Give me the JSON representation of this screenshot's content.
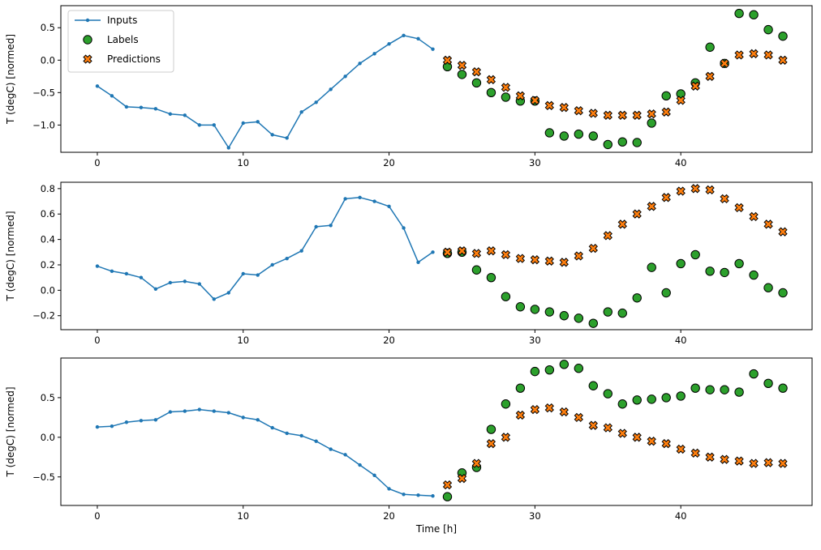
{
  "figure": {
    "background_color": "#ffffff",
    "xlabel": "Time [h]",
    "ylabel": "T (degC) [normed]",
    "legend": {
      "position": "upper-left",
      "entries": [
        {
          "label": "Inputs",
          "marker": "line-dot",
          "color": "#1f77b4"
        },
        {
          "label": "Labels",
          "marker": "circle",
          "color": "#2ca02c"
        },
        {
          "label": "Predictions",
          "marker": "x",
          "color": "#ff7f0e"
        }
      ]
    }
  },
  "chart_data": [
    {
      "type": "line",
      "title": "",
      "ylabel": "T (degC) [normed]",
      "xlim": [
        -2.5,
        49.0
      ],
      "xticks": [
        0,
        10,
        20,
        30,
        40
      ],
      "ylim": [
        -1.42,
        0.84
      ],
      "yticks": [
        0.5,
        0.0,
        -0.5,
        -1.0
      ],
      "grid": false,
      "series": [
        {
          "name": "Inputs",
          "marker": "line-dot",
          "color": "#1f77b4",
          "x_start": 0,
          "values": [
            -0.4,
            -0.55,
            -0.72,
            -0.73,
            -0.75,
            -0.83,
            -0.85,
            -1.0,
            -1.0,
            -1.35,
            -0.97,
            -0.95,
            -1.15,
            -1.2,
            -0.8,
            -0.65,
            -0.45,
            -0.25,
            -0.05,
            0.1,
            0.25,
            0.38,
            0.33,
            0.17
          ]
        },
        {
          "name": "Labels",
          "marker": "circle",
          "color": "#2ca02c",
          "x_start": 24,
          "values": [
            -0.1,
            -0.22,
            -0.35,
            -0.5,
            -0.57,
            -0.63,
            -0.63,
            -1.12,
            -1.17,
            -1.14,
            -1.17,
            -1.3,
            -1.26,
            -1.27,
            -0.97,
            -0.55,
            -0.52,
            -0.35,
            0.2,
            -0.05,
            0.72,
            0.7,
            0.47,
            0.37
          ]
        },
        {
          "name": "Predictions",
          "marker": "x",
          "color": "#ff7f0e",
          "x_start": 24,
          "values": [
            0.0,
            -0.08,
            -0.18,
            -0.3,
            -0.42,
            -0.55,
            -0.62,
            -0.7,
            -0.73,
            -0.78,
            -0.82,
            -0.85,
            -0.85,
            -0.85,
            -0.83,
            -0.8,
            -0.62,
            -0.4,
            -0.25,
            -0.05,
            0.08,
            0.1,
            0.08,
            0.0
          ]
        }
      ]
    },
    {
      "type": "line",
      "title": "",
      "ylabel": "T (degC) [normed]",
      "xlim": [
        -2.5,
        49.0
      ],
      "xticks": [
        0,
        10,
        20,
        30,
        40
      ],
      "ylim": [
        -0.31,
        0.85
      ],
      "yticks": [
        0.8,
        0.6,
        0.4,
        0.2,
        0.0,
        -0.2
      ],
      "grid": false,
      "series": [
        {
          "name": "Inputs",
          "marker": "line-dot",
          "color": "#1f77b4",
          "x_start": 0,
          "values": [
            0.19,
            0.15,
            0.13,
            0.1,
            0.01,
            0.06,
            0.07,
            0.05,
            -0.07,
            -0.02,
            0.13,
            0.12,
            0.2,
            0.25,
            0.31,
            0.5,
            0.51,
            0.72,
            0.73,
            0.7,
            0.66,
            0.49,
            0.22,
            0.3
          ]
        },
        {
          "name": "Labels",
          "marker": "circle",
          "color": "#2ca02c",
          "x_start": 24,
          "values": [
            0.29,
            0.3,
            0.16,
            0.1,
            -0.05,
            -0.13,
            -0.15,
            -0.17,
            -0.2,
            -0.22,
            -0.26,
            -0.17,
            -0.18,
            -0.06,
            0.18,
            -0.02,
            0.21,
            0.28,
            0.15,
            0.14,
            0.21,
            0.12,
            0.02,
            -0.02
          ]
        },
        {
          "name": "Predictions",
          "marker": "x",
          "color": "#ff7f0e",
          "x_start": 24,
          "values": [
            0.3,
            0.31,
            0.29,
            0.31,
            0.28,
            0.25,
            0.24,
            0.23,
            0.22,
            0.27,
            0.33,
            0.43,
            0.52,
            0.6,
            0.66,
            0.73,
            0.78,
            0.8,
            0.79,
            0.72,
            0.65,
            0.58,
            0.52,
            0.46
          ]
        }
      ]
    },
    {
      "type": "line",
      "title": "",
      "ylabel": "T (degC) [normed]",
      "xlabel": "Time [h]",
      "xlim": [
        -2.5,
        49.0
      ],
      "xticks": [
        0,
        10,
        20,
        30,
        40
      ],
      "ylim": [
        -0.86,
        1.0
      ],
      "yticks": [
        0.5,
        0.0,
        -0.5
      ],
      "grid": false,
      "series": [
        {
          "name": "Inputs",
          "marker": "line-dot",
          "color": "#1f77b4",
          "x_start": 0,
          "values": [
            0.13,
            0.14,
            0.19,
            0.21,
            0.22,
            0.32,
            0.33,
            0.35,
            0.33,
            0.31,
            0.25,
            0.22,
            0.12,
            0.05,
            0.02,
            -0.05,
            -0.15,
            -0.22,
            -0.35,
            -0.48,
            -0.65,
            -0.72,
            -0.73,
            -0.74
          ]
        },
        {
          "name": "Labels",
          "marker": "circle",
          "color": "#2ca02c",
          "x_start": 24,
          "values": [
            -0.75,
            -0.45,
            -0.38,
            0.1,
            0.42,
            0.62,
            0.83,
            0.85,
            0.92,
            0.87,
            0.65,
            0.55,
            0.42,
            0.47,
            0.48,
            0.5,
            0.52,
            0.62,
            0.6,
            0.6,
            0.57,
            0.8,
            0.68,
            0.62
          ]
        },
        {
          "name": "Predictions",
          "marker": "x",
          "color": "#ff7f0e",
          "x_start": 24,
          "values": [
            -0.6,
            -0.52,
            -0.33,
            -0.08,
            0.0,
            0.28,
            0.35,
            0.37,
            0.32,
            0.25,
            0.15,
            0.12,
            0.05,
            0.0,
            -0.05,
            -0.08,
            -0.15,
            -0.2,
            -0.25,
            -0.28,
            -0.3,
            -0.33,
            -0.32,
            -0.33
          ]
        }
      ]
    }
  ]
}
